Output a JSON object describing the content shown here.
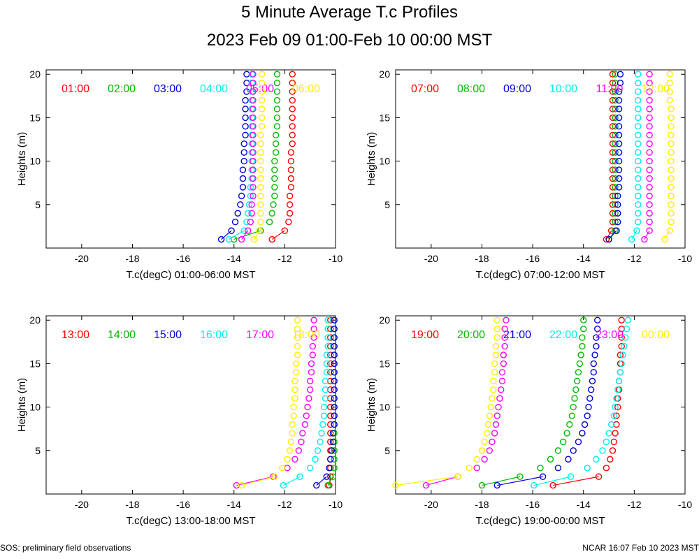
{
  "page": {
    "title": "5 Minute Average T.c Profiles",
    "subtitle": "2023 Feb 09 01:00-Feb 10 00:00 MST",
    "footer_left": "SOS: preliminary field observations",
    "footer_right": "NCAR 16:07 Feb 10 2023 MST"
  },
  "chart_data": [
    {
      "type": "scatter",
      "xlabel": "T.c(degC) 01:00-06:00 MST",
      "ylabel": "Heights (m)",
      "xlim": [
        -21.4,
        -10
      ],
      "ylim": [
        0,
        20.5
      ],
      "xticks": [
        -20,
        -18,
        -16,
        -14,
        -12,
        -10
      ],
      "yticks": [
        5,
        10,
        15,
        20
      ],
      "heights": [
        1,
        2,
        3,
        4,
        5,
        6,
        7,
        8,
        9,
        10,
        11,
        12,
        13,
        14,
        15,
        16,
        17,
        18,
        19,
        20
      ],
      "series": [
        {
          "name": "01:00",
          "color": "#ff0000",
          "values": [
            -12.5,
            -12.0,
            -11.85,
            -11.8,
            -11.8,
            -11.8,
            -11.75,
            -11.75,
            -11.75,
            -11.75,
            -11.75,
            -11.7,
            -11.7,
            -11.7,
            -11.7,
            -11.7,
            -11.7,
            -11.7,
            -11.7,
            -11.7
          ]
        },
        {
          "name": "02:00",
          "color": "#00bb00",
          "values": [
            -14.0,
            -12.95,
            -12.6,
            -12.5,
            -12.45,
            -12.4,
            -12.4,
            -12.4,
            -12.4,
            -12.4,
            -12.35,
            -12.35,
            -12.35,
            -12.3,
            -12.3,
            -12.3,
            -12.3,
            -12.3,
            -12.3,
            -12.3
          ]
        },
        {
          "name": "03:00",
          "color": "#0000dd",
          "values": [
            -14.5,
            -14.1,
            -13.95,
            -13.85,
            -13.75,
            -13.7,
            -13.65,
            -13.65,
            -13.65,
            -13.6,
            -13.6,
            -13.6,
            -13.55,
            -13.55,
            -13.55,
            -13.55,
            -13.55,
            -13.5,
            -13.5,
            -13.5
          ]
        },
        {
          "name": "04:00",
          "color": "#00eeee",
          "values": [
            -14.2,
            -13.6,
            -13.5,
            -13.45,
            -13.4,
            -13.35,
            -13.35,
            -13.3,
            -13.3,
            -13.3,
            -13.3,
            -13.3,
            -13.3,
            -13.3,
            -13.3,
            -13.3,
            -13.3,
            -13.3,
            -13.3,
            -13.3
          ]
        },
        {
          "name": "05:00",
          "color": "#ff00ff",
          "values": [
            -13.7,
            -13.45,
            -13.35,
            -13.3,
            -13.3,
            -13.25,
            -13.25,
            -13.25,
            -13.25,
            -13.25,
            -13.25,
            -13.25,
            -13.25,
            -13.25,
            -13.25,
            -13.25,
            -13.25,
            -13.25,
            -13.25,
            -13.25
          ]
        },
        {
          "name": "06:00",
          "color": "#ffee00",
          "values": [
            -13.2,
            -13.0,
            -12.95,
            -12.95,
            -12.95,
            -12.95,
            -12.95,
            -12.95,
            -12.95,
            -12.95,
            -12.95,
            -12.95,
            -12.95,
            -12.9,
            -12.9,
            -12.9,
            -12.9,
            -12.9,
            -12.9,
            -12.9
          ]
        }
      ]
    },
    {
      "type": "scatter",
      "xlabel": "T.c(degC) 07:00-12:00 MST",
      "ylabel": "Heights (m)",
      "xlim": [
        -21.4,
        -10
      ],
      "ylim": [
        0,
        20.5
      ],
      "xticks": [
        -20,
        -18,
        -16,
        -14,
        -12,
        -10
      ],
      "yticks": [
        5,
        10,
        15,
        20
      ],
      "heights": [
        1,
        2,
        3,
        4,
        5,
        6,
        7,
        8,
        9,
        10,
        11,
        12,
        13,
        14,
        15,
        16,
        17,
        18,
        19,
        20
      ],
      "series": [
        {
          "name": "07:00",
          "color": "#ff0000",
          "values": [
            -13.1,
            -12.9,
            -12.85,
            -12.85,
            -12.85,
            -12.85,
            -12.85,
            -12.85,
            -12.85,
            -12.85,
            -12.85,
            -12.85,
            -12.85,
            -12.85,
            -12.85,
            -12.85,
            -12.85,
            -12.85,
            -12.85,
            -12.85
          ]
        },
        {
          "name": "08:00",
          "color": "#00bb00",
          "values": [
            -13.0,
            -12.75,
            -12.75,
            -12.75,
            -12.75,
            -12.75,
            -12.75,
            -12.75,
            -12.75,
            -12.75,
            -12.75,
            -12.75,
            -12.75,
            -12.75,
            -12.75,
            -12.75,
            -12.75,
            -12.75,
            -12.75,
            -12.75
          ]
        },
        {
          "name": "09:00",
          "color": "#0000dd",
          "values": [
            -13.0,
            -12.7,
            -12.65,
            -12.65,
            -12.65,
            -12.65,
            -12.6,
            -12.6,
            -12.6,
            -12.6,
            -12.6,
            -12.6,
            -12.6,
            -12.6,
            -12.6,
            -12.6,
            -12.6,
            -12.6,
            -12.55,
            -12.55
          ]
        },
        {
          "name": "10:00",
          "color": "#00eeee",
          "values": [
            -12.1,
            -11.9,
            -11.85,
            -11.85,
            -11.85,
            -11.85,
            -11.85,
            -11.85,
            -11.85,
            -11.85,
            -11.85,
            -11.85,
            -11.85,
            -11.85,
            -11.85,
            -11.85,
            -11.85,
            -11.85,
            -11.85,
            -11.85
          ]
        },
        {
          "name": "11:00",
          "color": "#ff00ff",
          "values": [
            -11.6,
            -11.4,
            -11.4,
            -11.4,
            -11.4,
            -11.4,
            -11.4,
            -11.4,
            -11.4,
            -11.4,
            -11.4,
            -11.4,
            -11.4,
            -11.4,
            -11.4,
            -11.4,
            -11.4,
            -11.4,
            -11.4,
            -11.4
          ]
        },
        {
          "name": "12:00",
          "color": "#ffee00",
          "values": [
            -10.8,
            -10.6,
            -10.55,
            -10.55,
            -10.55,
            -10.55,
            -10.55,
            -10.55,
            -10.55,
            -10.55,
            -10.55,
            -10.55,
            -10.55,
            -10.55,
            -10.55,
            -10.55,
            -10.6,
            -10.6,
            -10.6,
            -10.6
          ]
        }
      ]
    },
    {
      "type": "scatter",
      "xlabel": "T.c(degC) 13:00-18:00 MST",
      "ylabel": "Heights (m)",
      "xlim": [
        -21.4,
        -10
      ],
      "ylim": [
        0,
        20.5
      ],
      "xticks": [
        -20,
        -18,
        -16,
        -14,
        -12,
        -10
      ],
      "yticks": [
        5,
        10,
        15,
        20
      ],
      "heights": [
        1,
        2,
        3,
        4,
        5,
        6,
        7,
        8,
        9,
        10,
        11,
        12,
        13,
        14,
        15,
        16,
        17,
        18,
        19,
        20
      ],
      "series": [
        {
          "name": "13:00",
          "color": "#ff0000",
          "values": [
            -10.25,
            -10.2,
            -10.2,
            -10.2,
            -10.2,
            -10.2,
            -10.2,
            -10.2,
            -10.2,
            -10.2,
            -10.2,
            -10.2,
            -10.2,
            -10.2,
            -10.2,
            -10.2,
            -10.2,
            -10.2,
            -10.2,
            -10.2
          ]
        },
        {
          "name": "14:00",
          "color": "#00bb00",
          "values": [
            -10.3,
            -10.1,
            -10.05,
            -10.05,
            -10.05,
            -10.05,
            -10.05,
            -10.05,
            -10.05,
            -10.05,
            -10.05,
            -10.05,
            -10.05,
            -10.05,
            -10.05,
            -10.05,
            -10.05,
            -10.05,
            -10.05,
            -10.05
          ]
        },
        {
          "name": "15:00",
          "color": "#0000dd",
          "values": [
            -10.75,
            -10.35,
            -10.25,
            -10.2,
            -10.15,
            -10.1,
            -10.1,
            -10.05,
            -10.05,
            -10.05,
            -10.05,
            -10.05,
            -10.05,
            -10.05,
            -10.05,
            -10.05,
            -10.05,
            -10.05,
            -10.05,
            -10.05
          ]
        },
        {
          "name": "16:00",
          "color": "#00eeee",
          "values": [
            -12.05,
            -11.4,
            -11.0,
            -10.8,
            -10.7,
            -10.6,
            -10.55,
            -10.5,
            -10.45,
            -10.45,
            -10.4,
            -10.4,
            -10.4,
            -10.35,
            -10.35,
            -10.35,
            -10.3,
            -10.3,
            -10.3,
            -10.3
          ]
        },
        {
          "name": "17:00",
          "color": "#ff00ff",
          "values": [
            -13.9,
            -12.45,
            -11.9,
            -11.6,
            -11.45,
            -11.35,
            -11.3,
            -11.2,
            -11.15,
            -11.1,
            -11.05,
            -11.0,
            -11.0,
            -10.95,
            -10.95,
            -10.9,
            -10.9,
            -10.85,
            -10.85,
            -10.85
          ]
        },
        {
          "name": "18:00",
          "color": "#ffee00",
          "values": [
            -13.7,
            -12.4,
            -12.1,
            -11.9,
            -11.8,
            -11.75,
            -11.7,
            -11.7,
            -11.65,
            -11.65,
            -11.6,
            -11.6,
            -11.6,
            -11.55,
            -11.55,
            -11.5,
            -11.5,
            -11.5,
            -11.5,
            -11.5
          ]
        }
      ]
    },
    {
      "type": "scatter",
      "xlabel": "T.c(degC) 19:00-00:00 MST",
      "ylabel": "Heights (m)",
      "xlim": [
        -21.4,
        -10
      ],
      "ylim": [
        0,
        20.5
      ],
      "xticks": [
        -20,
        -18,
        -16,
        -14,
        -12,
        -10
      ],
      "yticks": [
        5,
        10,
        15,
        20
      ],
      "heights": [
        1,
        2,
        3,
        4,
        5,
        6,
        7,
        8,
        9,
        10,
        11,
        12,
        13,
        14,
        15,
        16,
        17,
        18,
        19,
        20
      ],
      "series": [
        {
          "name": "19:00",
          "color": "#ff0000",
          "values": [
            -15.2,
            -13.4,
            -13.1,
            -12.95,
            -12.85,
            -12.8,
            -12.75,
            -12.7,
            -12.7,
            -12.65,
            -12.65,
            -12.6,
            -12.6,
            -12.55,
            -12.55,
            -12.55,
            -12.5,
            -12.5,
            -12.5,
            -12.5
          ]
        },
        {
          "name": "20:00",
          "color": "#00bb00",
          "values": [
            -18.0,
            -16.5,
            -15.7,
            -15.3,
            -15.0,
            -14.8,
            -14.65,
            -14.55,
            -14.45,
            -14.4,
            -14.35,
            -14.3,
            -14.25,
            -14.2,
            -14.15,
            -14.1,
            -14.05,
            -14.05,
            -14.0,
            -14.0
          ]
        },
        {
          "name": "21:00",
          "color": "#0000dd",
          "values": [
            -17.4,
            -15.6,
            -15.0,
            -14.6,
            -14.4,
            -14.2,
            -14.05,
            -13.95,
            -13.85,
            -13.8,
            -13.75,
            -13.7,
            -13.65,
            -13.6,
            -13.6,
            -13.55,
            -13.5,
            -13.5,
            -13.45,
            -13.45
          ]
        },
        {
          "name": "22:00",
          "color": "#00eeee",
          "values": [
            -15.95,
            -14.5,
            -13.85,
            -13.5,
            -13.25,
            -13.1,
            -13.0,
            -12.9,
            -12.8,
            -12.75,
            -12.7,
            -12.65,
            -12.6,
            -12.55,
            -12.5,
            -12.45,
            -12.4,
            -12.35,
            -12.3,
            -12.25
          ]
        },
        {
          "name": "23:00",
          "color": "#ff00ff",
          "values": [
            -20.2,
            -18.95,
            -18.2,
            -17.9,
            -17.7,
            -17.6,
            -17.5,
            -17.45,
            -17.4,
            -17.35,
            -17.3,
            -17.25,
            -17.2,
            -17.2,
            -17.15,
            -17.15,
            -17.1,
            -17.1,
            -17.1,
            -17.05
          ]
        },
        {
          "name": "00:00",
          "color": "#ffee00",
          "values": [
            -21.4,
            -18.95,
            -18.5,
            -18.2,
            -18.0,
            -17.9,
            -17.8,
            -17.75,
            -17.7,
            -17.65,
            -17.6,
            -17.55,
            -17.55,
            -17.5,
            -17.5,
            -17.45,
            -17.45,
            -17.4,
            -17.4,
            -17.4
          ]
        }
      ]
    }
  ]
}
